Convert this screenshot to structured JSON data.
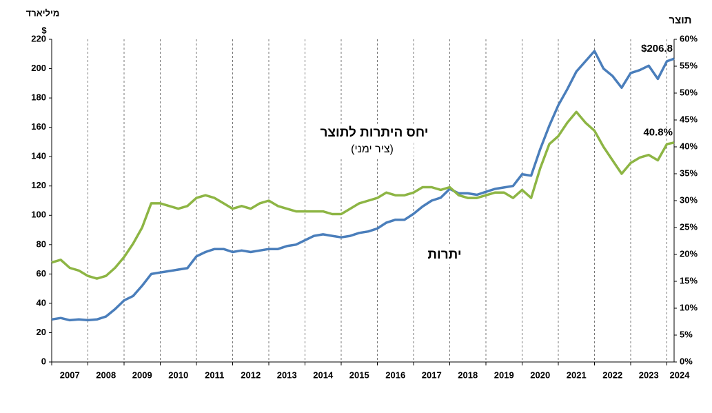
{
  "chart_data": {
    "type": "line",
    "y_axis_title": "מיליארד",
    "y_axis_unit": "$",
    "y2_axis_title": "תוצר",
    "annotations": [
      "(ציר ימני)"
    ],
    "x": [
      2007,
      2007.25,
      2007.5,
      2007.75,
      2008,
      2008.25,
      2008.5,
      2008.75,
      2009,
      2009.25,
      2009.5,
      2009.75,
      2010,
      2010.25,
      2010.5,
      2010.75,
      2011,
      2011.25,
      2011.5,
      2011.75,
      2012,
      2012.25,
      2012.5,
      2012.75,
      2013,
      2013.25,
      2013.5,
      2013.75,
      2014,
      2014.25,
      2014.5,
      2014.75,
      2015,
      2015.25,
      2015.5,
      2015.75,
      2016,
      2016.25,
      2016.5,
      2016.75,
      2017,
      2017.25,
      2017.5,
      2017.75,
      2018,
      2018.25,
      2018.5,
      2018.75,
      2019,
      2019.25,
      2019.5,
      2019.75,
      2020,
      2020.25,
      2020.5,
      2020.75,
      2021,
      2021.25,
      2021.5,
      2021.75,
      2022,
      2022.25,
      2022.5,
      2022.75,
      2023,
      2023.25,
      2023.5,
      2023.75,
      2024,
      2024.2
    ],
    "series": [
      {
        "name": "יתרות",
        "color": "#4a7ebb",
        "axis": "y",
        "values": [
          29,
          30,
          28.5,
          29,
          28.5,
          29,
          31,
          36,
          42,
          45,
          52,
          60,
          61,
          62,
          63,
          64,
          72,
          75,
          77,
          77,
          75,
          76,
          75,
          76,
          77,
          77,
          79,
          80,
          83,
          86,
          87,
          86,
          85,
          86,
          88,
          89,
          91,
          95,
          97,
          97,
          101,
          106,
          110,
          112,
          118,
          115,
          115,
          114,
          116,
          118,
          119,
          120,
          128,
          127,
          145,
          161,
          175,
          186,
          198,
          205,
          212,
          200,
          195,
          187,
          197,
          199,
          202,
          193,
          205,
          206.8
        ],
        "value_labels": {
          "69": "$206.8"
        }
      },
      {
        "name": "יחס היתרות לתוצר",
        "color": "#8db544",
        "axis": "y2",
        "values": [
          18.5,
          19,
          17.5,
          17,
          16,
          15.5,
          16,
          17.5,
          19.5,
          22,
          25,
          29.5,
          29.5,
          29,
          28.5,
          29,
          30.5,
          31,
          30.5,
          29.5,
          28.5,
          29,
          28.5,
          29.5,
          30,
          29,
          28.5,
          28,
          28,
          28,
          28,
          27.5,
          27.5,
          28.5,
          29.5,
          30,
          30.5,
          31.5,
          31,
          31,
          31.5,
          32.5,
          32.5,
          32,
          32.5,
          31,
          30.5,
          30.5,
          31,
          31.5,
          31.5,
          30.5,
          32,
          30.5,
          36,
          40.5,
          42,
          44.5,
          46.5,
          44.5,
          43,
          40,
          37.5,
          35,
          37,
          38,
          38.5,
          37.5,
          40.5,
          40.8
        ],
        "value_labels": {
          "69": "40.8%"
        }
      }
    ],
    "xlim": [
      2007,
      2024.2
    ],
    "xticks": [
      2007,
      2008,
      2009,
      2010,
      2011,
      2012,
      2013,
      2014,
      2015,
      2016,
      2017,
      2018,
      2019,
      2020,
      2021,
      2022,
      2023,
      2024
    ],
    "ylim": [
      0,
      220
    ],
    "yticks": [
      0,
      20,
      40,
      60,
      80,
      100,
      120,
      140,
      160,
      180,
      200,
      220
    ],
    "y2lim": [
      0,
      60
    ],
    "y2ticks": [
      {
        "value": 0,
        "label": "0%"
      },
      {
        "value": 5,
        "label": "5%"
      },
      {
        "value": 10,
        "label": "10%"
      },
      {
        "value": 15,
        "label": "15%"
      },
      {
        "value": 20,
        "label": "20%"
      },
      {
        "value": 25,
        "label": "25%"
      },
      {
        "value": 30,
        "label": "30%"
      },
      {
        "value": 35,
        "label": "35%"
      },
      {
        "value": 40,
        "label": "40%"
      },
      {
        "value": 45,
        "label": "45%"
      },
      {
        "value": 50,
        "label": "50%"
      },
      {
        "value": 55,
        "label": "55%"
      },
      {
        "value": 60,
        "label": "60%"
      }
    ],
    "grid": "x-dashed"
  }
}
